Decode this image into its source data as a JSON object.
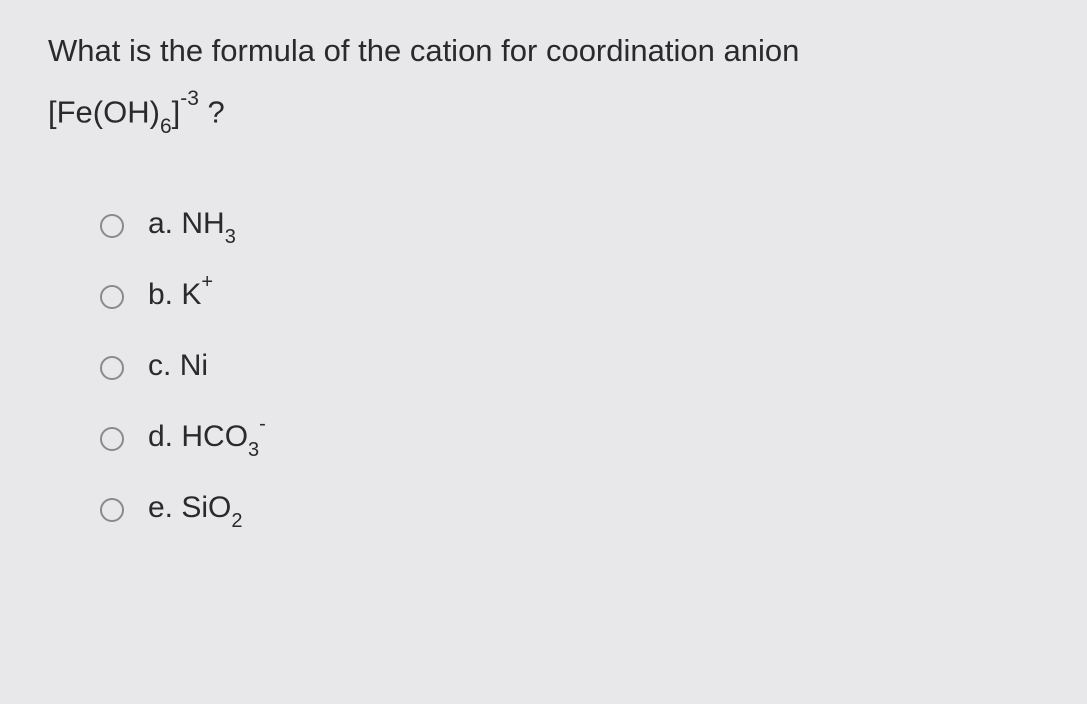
{
  "question": {
    "line1": "What is the formula of the cation for coordination anion",
    "formula_prefix": "[Fe(OH)",
    "formula_sub": "6",
    "formula_close": "]",
    "formula_sup": "-3",
    "formula_suffix": " ?"
  },
  "options": {
    "a": {
      "letter": "a.",
      "text": "NH",
      "sub": "3",
      "sup": ""
    },
    "b": {
      "letter": "b.",
      "text": "K",
      "sub": "",
      "sup": "+"
    },
    "c": {
      "letter": "c.",
      "text": "Ni",
      "sub": "",
      "sup": ""
    },
    "d": {
      "letter": "d.",
      "text": "HCO",
      "sub": "3",
      "sup": "-"
    },
    "e": {
      "letter": "e.",
      "text": "SiO",
      "sub": "2",
      "sup": ""
    }
  },
  "colors": {
    "background": "#e8e8ea",
    "text": "#2a2a2a",
    "radio_border": "#8a8a8a"
  }
}
